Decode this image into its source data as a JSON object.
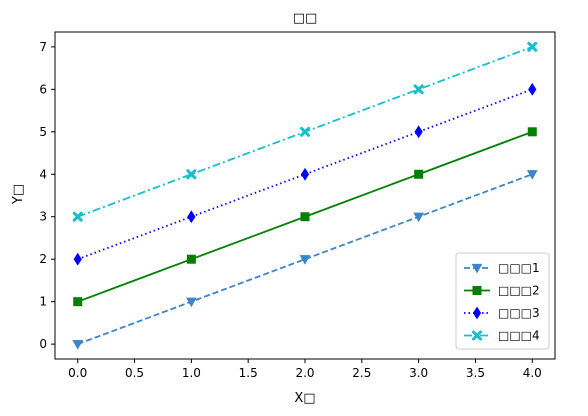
{
  "chart_data": {
    "type": "line",
    "title": "□□",
    "xlabel": "X□",
    "ylabel": "Y□",
    "x": [
      0,
      1,
      2,
      3,
      4
    ],
    "xlim": [
      -0.2,
      4.2
    ],
    "ylim": [
      -0.35,
      7.35
    ],
    "xticks": [
      "0.0",
      "0.5",
      "1.0",
      "1.5",
      "2.0",
      "2.5",
      "3.0",
      "3.5",
      "4.0"
    ],
    "xtick_values": [
      0,
      0.5,
      1,
      1.5,
      2,
      2.5,
      3,
      3.5,
      4
    ],
    "yticks": [
      "0",
      "1",
      "2",
      "3",
      "4",
      "5",
      "6",
      "7"
    ],
    "ytick_values": [
      0,
      1,
      2,
      3,
      4,
      5,
      6,
      7
    ],
    "grid": false,
    "legend_position": "lower-right",
    "series": [
      {
        "name": "□□□1",
        "values": [
          0,
          1,
          2,
          3,
          4
        ],
        "color": "#3a86c8",
        "linestyle": "dashed",
        "marker": "triangle-down"
      },
      {
        "name": "□□□2",
        "values": [
          1,
          2,
          3,
          4,
          5
        ],
        "color": "#008000",
        "linestyle": "solid",
        "marker": "square"
      },
      {
        "name": "□□□3",
        "values": [
          2,
          3,
          4,
          5,
          6
        ],
        "color": "#0000ff",
        "linestyle": "dotted",
        "marker": "diamond"
      },
      {
        "name": "□□□4",
        "values": [
          3,
          4,
          5,
          6,
          7
        ],
        "color": "#17becf",
        "linestyle": "dashdot",
        "marker": "x"
      }
    ]
  }
}
